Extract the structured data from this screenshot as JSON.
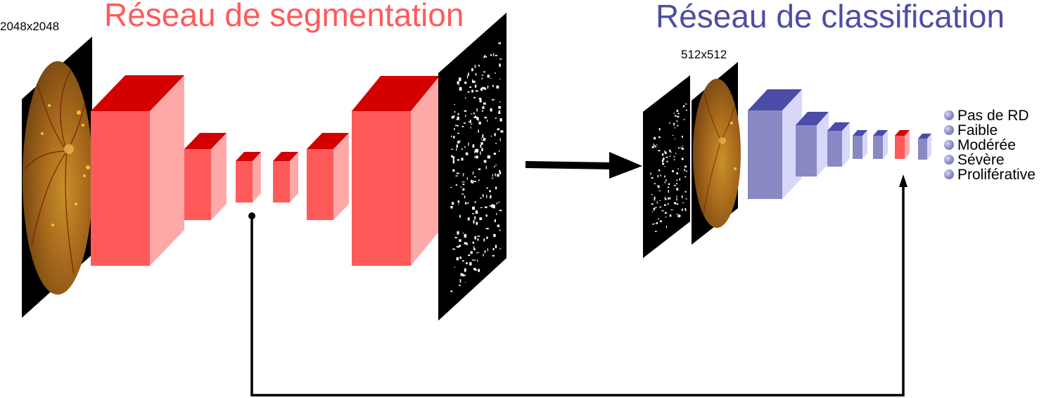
{
  "titles": {
    "segmentation": "Réseau de segmentation",
    "classification": "Réseau de classification"
  },
  "sizes": {
    "input": "2048x2048",
    "classification_input": "512x512"
  },
  "classes": [
    "Pas de RD",
    "Faible",
    "Modérée",
    "Sévère",
    "Proliférative"
  ],
  "colors": {
    "segmentation": "#ff5a5a",
    "classification": "#4d4da6",
    "seg_front": "#ff5a5a",
    "seg_side": "#ffa8a8",
    "seg_top": "#d40000",
    "cls_front": "#8888c4",
    "cls_side": "#d7d7fa",
    "cls_top": "#4b4ba8",
    "arrow": "#000000"
  }
}
